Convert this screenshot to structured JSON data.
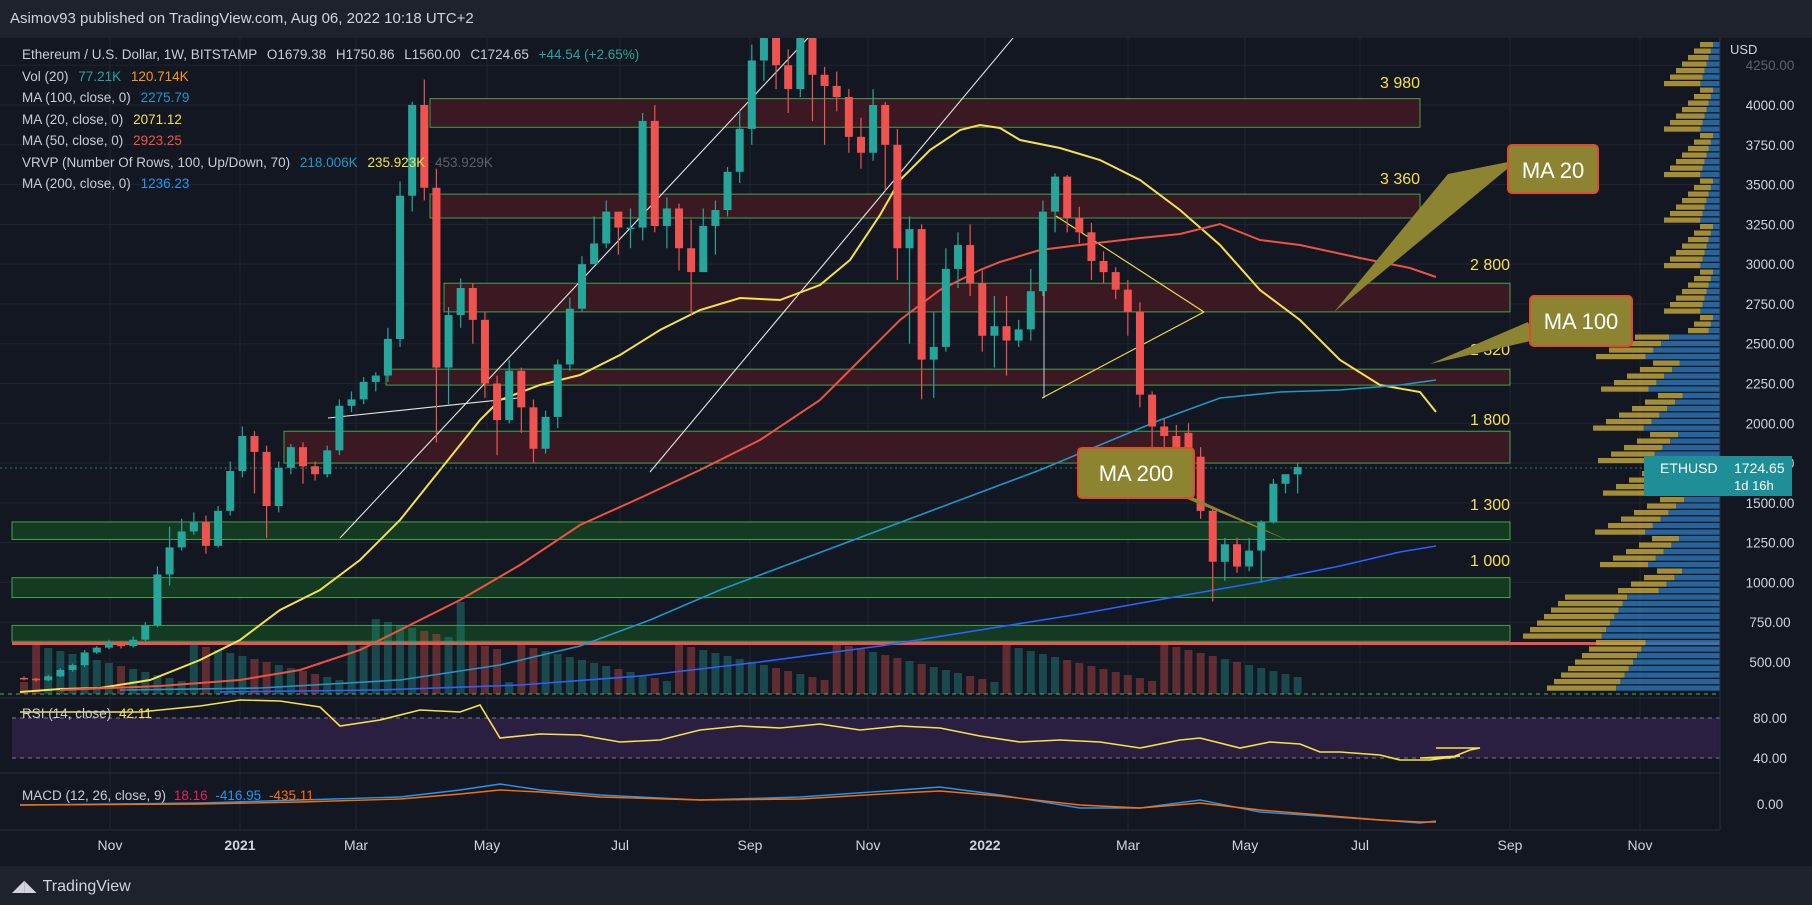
{
  "publish_line": "Asimov93 published on TradingView.com, Aug 06, 2022 10:18 UTC+2",
  "brand": "TradingView",
  "currency": "USD",
  "legend": {
    "symbol": "Ethereum / U.S. Dollar, 1W, BITSTAMP",
    "ohlc": {
      "o": "O1679.38",
      "h": "H1750.86",
      "l": "L1560.00",
      "c": "C1724.65",
      "chg": "+44.54 (+2.65%)"
    },
    "vol": {
      "label": "Vol (20)",
      "v1": "77.21K",
      "v2": "120.714K"
    },
    "ma100": {
      "label": "MA (100, close, 0)",
      "value": "2275.79"
    },
    "ma20": {
      "label": "MA (20, close, 0)",
      "value": "2071.12"
    },
    "ma50": {
      "label": "MA (50, close, 0)",
      "value": "2923.25"
    },
    "vrvp": {
      "label": "VRVP (Number Of Rows, 100, Up/Down, 70)",
      "v1": "218.006K",
      "v2": "235.923K",
      "v3": "453.929K"
    },
    "ma200": {
      "label": "MA (200, close, 0)",
      "value": "1236.23"
    }
  },
  "price_tag": {
    "symbol": "ETHUSD",
    "price": "1724.65",
    "timer": "1d 16h"
  },
  "rsi": {
    "label": "RSI (14, close)",
    "value": "42.11"
  },
  "macd": {
    "label": "MACD (12, 26, close, 9)",
    "v1": "18.16",
    "v2": "-416.95",
    "v3": "-435.11"
  },
  "annotations": [
    "MA 20",
    "MA 100",
    "MA 200"
  ],
  "colors": {
    "up": "#26a69a",
    "down": "#ef5350",
    "ma20": "#f5e14a",
    "ma50": "#f0523f",
    "ma100": "#2196c8",
    "ma200": "#2962ff",
    "zone_red": "#3f1a22",
    "zone_green": "#153e23",
    "zone_border": "#4caf50",
    "level_text": "#f5e14a",
    "callout_bg": "#8c8431",
    "callout_border": "#e04b2c",
    "callout_text": "#ffffff"
  },
  "chart_data": {
    "type": "candlestick",
    "title": "Ethereum / U.S. Dollar, 1W, BITSTAMP",
    "y_axis": {
      "ticks": [
        4250,
        4000,
        3750,
        3500,
        3250,
        3000,
        2750,
        2500,
        2250,
        2000,
        1750,
        1500,
        1250,
        1000,
        750,
        500
      ],
      "range": [
        500,
        4250
      ],
      "tick_labels": [
        "4250.00",
        "4000.00",
        "3750.00",
        "3500.00",
        "3250.00",
        "3000.00",
        "2750.00",
        "2500.00",
        "2250.00",
        "2000.00",
        "1750.00",
        "1500.00",
        "1250.00",
        "1000.00",
        "750.00",
        "500.00"
      ]
    },
    "x_axis": {
      "labels": [
        "Nov",
        "2021",
        "Mar",
        "May",
        "Jul",
        "Sep",
        "Nov",
        "2022",
        "Mar",
        "May",
        "Jul",
        "Sep",
        "Nov"
      ]
    },
    "zones": [
      {
        "label": "3 980",
        "low": 3860,
        "high": 4040,
        "type": "red"
      },
      {
        "label": "3 360",
        "low": 3290,
        "high": 3440,
        "type": "red"
      },
      {
        "label": "2 800",
        "low": 2700,
        "high": 2880,
        "type": "red"
      },
      {
        "label": "2 320",
        "low": 2240,
        "high": 2340,
        "type": "red"
      },
      {
        "label": "1 800",
        "low": 1750,
        "high": 1950,
        "type": "red"
      },
      {
        "label": "1 300",
        "low": 1270,
        "high": 1380,
        "type": "green"
      },
      {
        "label": "1 000",
        "low": 905,
        "high": 1030,
        "type": "green"
      },
      {
        "label": "",
        "low": 630,
        "high": 730,
        "type": "green"
      }
    ],
    "candles": [
      [
        400,
        395,
        410,
        385
      ],
      [
        395,
        385,
        400,
        375
      ],
      [
        385,
        410,
        420,
        380
      ],
      [
        410,
        450,
        460,
        405
      ],
      [
        450,
        480,
        490,
        440
      ],
      [
        480,
        560,
        575,
        470
      ],
      [
        560,
        590,
        600,
        550
      ],
      [
        590,
        620,
        640,
        580
      ],
      [
        620,
        600,
        630,
        585
      ],
      [
        600,
        640,
        660,
        590
      ],
      [
        640,
        730,
        750,
        630
      ],
      [
        730,
        1050,
        1100,
        720
      ],
      [
        1050,
        1220,
        1350,
        980
      ],
      [
        1220,
        1320,
        1400,
        1200
      ],
      [
        1320,
        1380,
        1440,
        1300
      ],
      [
        1380,
        1230,
        1420,
        1180
      ],
      [
        1230,
        1450,
        1480,
        1220
      ],
      [
        1450,
        1700,
        1760,
        1420
      ],
      [
        1700,
        1920,
        1980,
        1660
      ],
      [
        1920,
        1820,
        1950,
        1560
      ],
      [
        1820,
        1480,
        1860,
        1280
      ],
      [
        1480,
        1720,
        1760,
        1440
      ],
      [
        1720,
        1850,
        1870,
        1680
      ],
      [
        1850,
        1730,
        1880,
        1620
      ],
      [
        1730,
        1680,
        1760,
        1640
      ],
      [
        1680,
        1830,
        1860,
        1660
      ],
      [
        1830,
        2110,
        2150,
        1800
      ],
      [
        2110,
        2150,
        2200,
        2070
      ],
      [
        2150,
        2260,
        2290,
        2120
      ],
      [
        2260,
        2300,
        2320,
        2200
      ],
      [
        2300,
        2530,
        2600,
        2260
      ],
      [
        2530,
        3430,
        3520,
        2480
      ],
      [
        3430,
        4000,
        4020,
        3330
      ],
      [
        4000,
        3480,
        4160,
        3400
      ],
      [
        3480,
        2350,
        3600,
        1880
      ],
      [
        2350,
        2680,
        2730,
        2120
      ],
      [
        2680,
        2850,
        2910,
        2600
      ],
      [
        2850,
        2650,
        2880,
        2500
      ],
      [
        2650,
        2250,
        2700,
        2160
      ],
      [
        2250,
        2020,
        2300,
        1800
      ],
      [
        2020,
        2330,
        2400,
        2000
      ],
      [
        2330,
        2100,
        2350,
        1940
      ],
      [
        2100,
        1840,
        2150,
        1750
      ],
      [
        1840,
        2040,
        2080,
        1810
      ],
      [
        2040,
        2370,
        2400,
        1970
      ],
      [
        2370,
        2720,
        2790,
        2330
      ],
      [
        2720,
        3000,
        3050,
        2700
      ],
      [
        3000,
        3130,
        3300,
        3000
      ],
      [
        3130,
        3330,
        3400,
        3100
      ],
      [
        3330,
        3230,
        3300,
        3060
      ],
      [
        3230,
        3230,
        3350,
        3100
      ],
      [
        3230,
        3900,
        3950,
        3150
      ],
      [
        3900,
        3240,
        4000,
        3200
      ],
      [
        3240,
        3350,
        3420,
        3100
      ],
      [
        3350,
        3100,
        3380,
        2960
      ],
      [
        3100,
        2950,
        3280,
        2680
      ],
      [
        2950,
        3240,
        3350,
        2950
      ],
      [
        3240,
        3340,
        3400,
        3060
      ],
      [
        3340,
        3580,
        3610,
        3300
      ],
      [
        3580,
        3850,
        3970,
        3510
      ],
      [
        3850,
        4280,
        4380,
        3750
      ],
      [
        4280,
        4500,
        4670,
        4150
      ],
      [
        4500,
        4250,
        4800,
        4100
      ],
      [
        4250,
        4100,
        4350,
        3950
      ],
      [
        4100,
        4450,
        4700,
        4050
      ],
      [
        4450,
        4190,
        4550,
        3900
      ],
      [
        4190,
        4120,
        4240,
        3750
      ],
      [
        4120,
        4050,
        4210,
        3960
      ],
      [
        4050,
        3800,
        4100,
        3700
      ],
      [
        3800,
        3700,
        3920,
        3600
      ],
      [
        3700,
        4000,
        4100,
        3650
      ],
      [
        4000,
        3750,
        4020,
        3460
      ],
      [
        3750,
        3100,
        3850,
        2900
      ],
      [
        3100,
        3220,
        3300,
        2500
      ],
      [
        3220,
        2400,
        3250,
        2150
      ],
      [
        2400,
        2480,
        2700,
        2160
      ],
      [
        2480,
        2970,
        3100,
        2450
      ],
      [
        2970,
        3120,
        3200,
        2850
      ],
      [
        3120,
        2880,
        3250,
        2800
      ],
      [
        2880,
        2550,
        2960,
        2450
      ],
      [
        2550,
        2610,
        2800,
        2350
      ],
      [
        2610,
        2520,
        2800,
        2300
      ],
      [
        2520,
        2590,
        2650,
        2480
      ],
      [
        2590,
        2830,
        2970,
        2520
      ],
      [
        2830,
        3330,
        3400,
        2800
      ],
      [
        3330,
        3550,
        3570,
        3200
      ],
      [
        3550,
        3290,
        3560,
        3200
      ],
      [
        3290,
        3200,
        3360,
        3130
      ],
      [
        3200,
        3020,
        3260,
        2900
      ],
      [
        3020,
        2950,
        3080,
        2880
      ],
      [
        2950,
        2840,
        2980,
        2780
      ],
      [
        2840,
        2700,
        2900,
        2550
      ],
      [
        2700,
        2180,
        2760,
        2100
      ],
      [
        2180,
        1980,
        2200,
        1710
      ],
      [
        1980,
        1920,
        2030,
        1720
      ],
      [
        1920,
        1740,
        1990,
        1720
      ],
      [
        1940,
        1790,
        2000,
        1760
      ],
      [
        1790,
        1450,
        1850,
        1400
      ],
      [
        1450,
        1130,
        1470,
        880
      ],
      [
        1130,
        1240,
        1280,
        1010
      ],
      [
        1240,
        1100,
        1280,
        1060
      ],
      [
        1100,
        1200,
        1280,
        1070
      ],
      [
        1200,
        1380,
        1390,
        1000
      ],
      [
        1380,
        1620,
        1650,
        1370
      ],
      [
        1620,
        1680,
        1660,
        1560
      ],
      [
        1679.38,
        1724.65,
        1750.86,
        1560.0
      ]
    ],
    "rsi_axis": {
      "ticks": [
        80,
        40
      ],
      "tick_labels": [
        "80.00",
        "40.00"
      ]
    },
    "macd_axis": {
      "ticks": [
        0
      ],
      "tick_labels": [
        "0.00"
      ]
    }
  }
}
